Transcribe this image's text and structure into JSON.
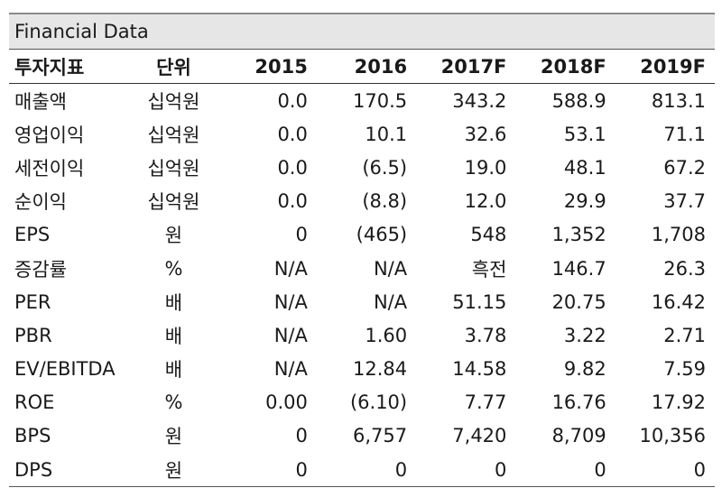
{
  "title": "Financial Data",
  "headers": [
    "투자지표",
    "단위",
    "2015",
    "2016",
    "2017F",
    "2018F",
    "2019F"
  ],
  "rows": [
    {
      "label": "매출액",
      "unit": "십억원",
      "values": [
        "0.0",
        "170.5",
        "343.2",
        "588.9",
        "813.1"
      ]
    },
    {
      "label": "영업이익",
      "unit": "십억원",
      "values": [
        "0.0",
        "10.1",
        "32.6",
        "53.1",
        "71.1"
      ]
    },
    {
      "label": "세전이익",
      "unit": "십억원",
      "values": [
        "0.0",
        "(6.5)",
        "19.0",
        "48.1",
        "67.2"
      ]
    },
    {
      "label": "순이익",
      "unit": "십억원",
      "values": [
        "0.0",
        "(8.8)",
        "12.0",
        "29.9",
        "37.7"
      ]
    },
    {
      "label": "EPS",
      "unit": "원",
      "values": [
        "0",
        "(465)",
        "548",
        "1,352",
        "1,708"
      ]
    },
    {
      "label": "증감률",
      "unit": "%",
      "values": [
        "N/A",
        "N/A",
        "흑전",
        "146.7",
        "26.3"
      ]
    },
    {
      "label": "PER",
      "unit": "배",
      "values": [
        "N/A",
        "N/A",
        "51.15",
        "20.75",
        "16.42"
      ]
    },
    {
      "label": "PBR",
      "unit": "배",
      "values": [
        "N/A",
        "1.60",
        "3.78",
        "3.22",
        "2.71"
      ]
    },
    {
      "label": "EV/EBITDA",
      "unit": "배",
      "values": [
        "N/A",
        "12.84",
        "14.58",
        "9.82",
        "7.59"
      ]
    },
    {
      "label": "ROE",
      "unit": "%",
      "values": [
        "0.00",
        "(6.10)",
        "7.77",
        "16.76",
        "17.92"
      ]
    },
    {
      "label": "BPS",
      "unit": "원",
      "values": [
        "0",
        "6,757",
        "7,420",
        "8,709",
        "10,356"
      ]
    },
    {
      "label": "DPS",
      "unit": "원",
      "values": [
        "0",
        "0",
        "0",
        "0",
        "0"
      ]
    }
  ]
}
